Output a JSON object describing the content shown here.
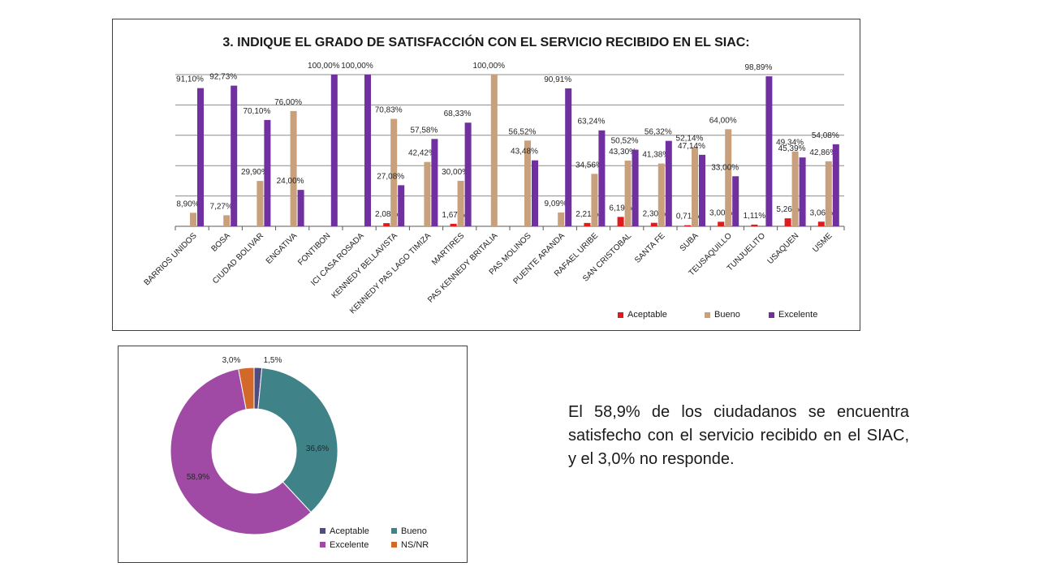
{
  "colors": {
    "aceptable": "#e01b1b",
    "bueno": "#c9a07c",
    "excelente": "#7030a0",
    "pie_aceptable": "#4f4c80",
    "pie_bueno": "#3f8288",
    "pie_excelente": "#a04aa6",
    "pie_nsnr": "#d2692a"
  },
  "bar_chart": {
    "title": "3. INDIQUE EL GRADO DE SATISFACCIÓN CON EL SERVICIO RECIBIDO EN EL SIAC:",
    "legend": [
      "Aceptable",
      "Bueno",
      "Excelente"
    ]
  },
  "pie_chart": {
    "legend": [
      "Aceptable",
      "Bueno",
      "Excelente",
      "NS/NR"
    ]
  },
  "summary_text": "El 58,9% de los ciudadanos se encuentra satisfecho con el servicio recibido en el SIAC, y el 3,0% no responde.",
  "chart_data": [
    {
      "type": "bar",
      "title": "3. INDIQUE EL GRADO DE SATISFACCIÓN CON EL SERVICIO RECIBIDO EN EL SIAC:",
      "categories": [
        "BARRIOS UNIDOS",
        "BOSA",
        "CIUDAD BOLIVAR",
        "ENGATIVA",
        "FONTIBON",
        "ICI CASA ROSADA",
        "KENNEDY BELLAVISTA",
        "KENNEDY PAS LAGO TIMIZA",
        "MARTIRES",
        "PAS KENNEDY BRITALIA",
        "PAS MOLINOS",
        "PUENTE ARANDA",
        "RAFAEL URIBE",
        "SAN CRISTOBAL",
        "SANTA FE",
        "SUBA",
        "TEUSAQUILLO",
        "TUNJUELITO",
        "USAQUEN",
        "USME"
      ],
      "series": [
        {
          "name": "Aceptable",
          "values": [
            0,
            0,
            0,
            0,
            0,
            0,
            2.08,
            0,
            1.67,
            0,
            0,
            0,
            2.21,
            6.19,
            2.3,
            0.71,
            3.0,
            1.11,
            5.26,
            3.06
          ],
          "labels": [
            "",
            "",
            "",
            "",
            "",
            "",
            "2,08%",
            "",
            "1,67%",
            "",
            "",
            "",
            "2,21%",
            "6,19%",
            "2,30%",
            "0,71%",
            "3,00%",
            "1,11%",
            "5,26%",
            "3,06%"
          ]
        },
        {
          "name": "Bueno",
          "values": [
            8.9,
            7.27,
            29.9,
            76.0,
            0,
            0,
            70.83,
            42.42,
            30.0,
            100.0,
            56.52,
            9.09,
            34.56,
            43.3,
            41.38,
            52.14,
            64.0,
            0,
            49.34,
            42.86
          ],
          "labels": [
            "8,90%",
            "7,27%",
            "29,90%",
            "76,00%",
            "",
            "",
            "70,83%",
            "42,42%",
            "30,00%",
            "100,00%",
            "56,52%",
            "9,09%",
            "34,56%",
            "43,30%",
            "41,38%",
            "52,14%",
            "64,00%",
            "",
            "49,34%",
            "42,86%"
          ]
        },
        {
          "name": "Excelente",
          "values": [
            91.1,
            92.73,
            70.1,
            24.0,
            100.0,
            100.0,
            27.08,
            57.58,
            68.33,
            0,
            43.48,
            90.91,
            63.24,
            50.52,
            56.32,
            47.14,
            33.0,
            98.89,
            45.39,
            54.08
          ],
          "labels": [
            "91,10%",
            "92,73%",
            "70,10%",
            "24,00%",
            "100,00%",
            "100,00%",
            "27,08%",
            "57,58%",
            "68,33%",
            "",
            "43,48%",
            "90,91%",
            "63,24%",
            "50,52%",
            "56,32%",
            "47,14%",
            "33,00%",
            "98,89%",
            "45,39%",
            "54,08%"
          ]
        }
      ],
      "ylim": [
        0,
        100
      ],
      "grid": true,
      "legend_position": "bottom-right"
    },
    {
      "type": "pie",
      "donut": true,
      "slices": [
        {
          "name": "Aceptable",
          "value": 1.5,
          "label": "1,5%"
        },
        {
          "name": "Bueno",
          "value": 36.6,
          "label": "36,6%"
        },
        {
          "name": "Excelente",
          "value": 58.9,
          "label": "58,9%"
        },
        {
          "name": "NS/NR",
          "value": 3.0,
          "label": "3,0%"
        }
      ],
      "legend_position": "bottom-right"
    }
  ]
}
